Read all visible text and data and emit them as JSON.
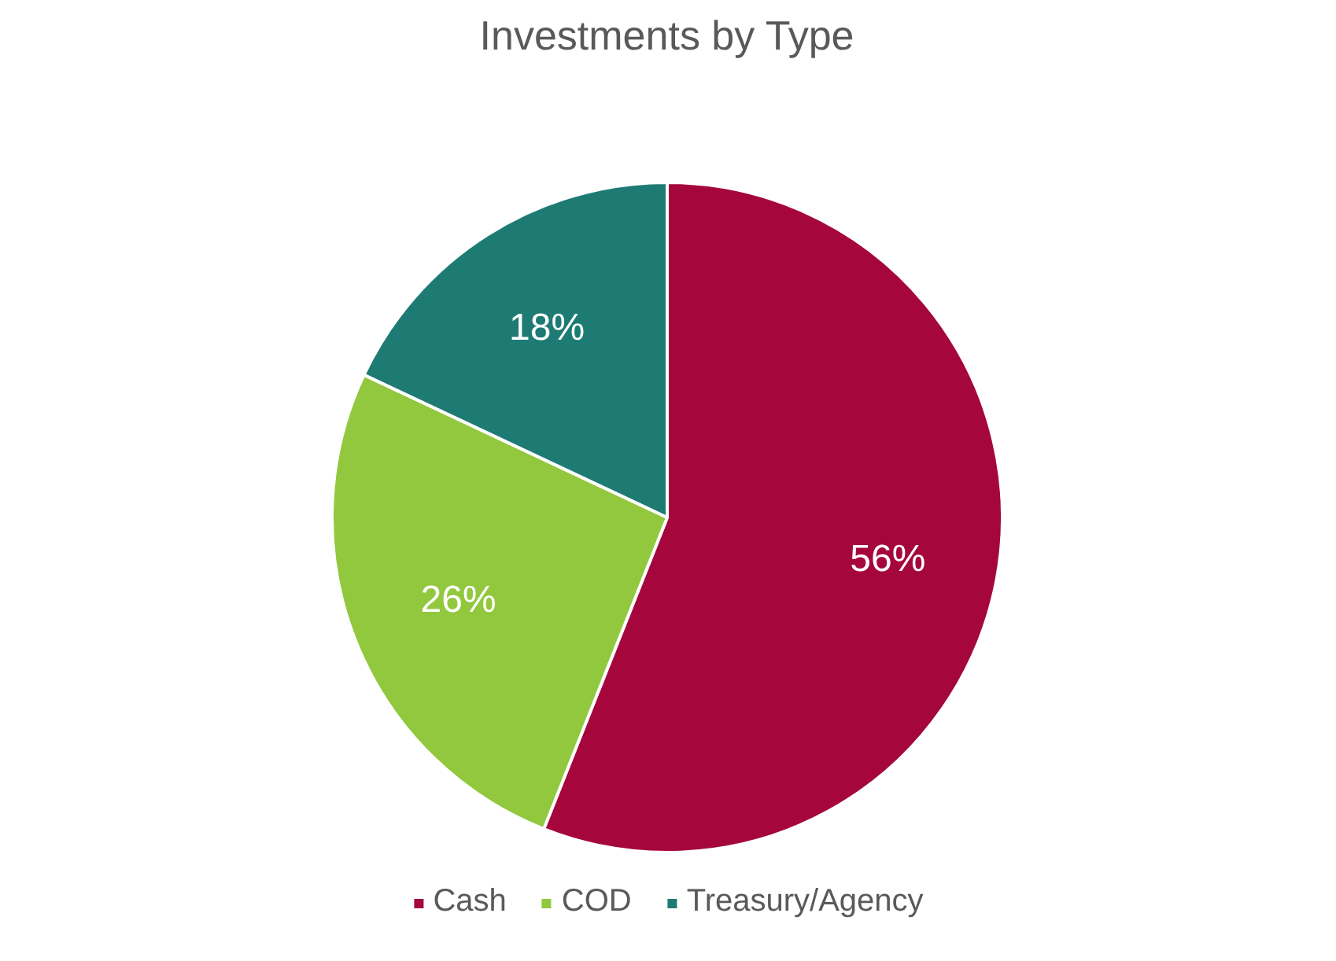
{
  "chart_data": {
    "type": "pie",
    "title": "Investments by Type",
    "categories": [
      "Cash",
      "COD",
      "Treasury/Agency"
    ],
    "values": [
      56,
      26,
      18
    ],
    "colors": [
      "#a5073c",
      "#92c83e",
      "#1e7b74"
    ],
    "value_labels": [
      "56%",
      "26%",
      "18%"
    ],
    "legend": "bottom"
  }
}
